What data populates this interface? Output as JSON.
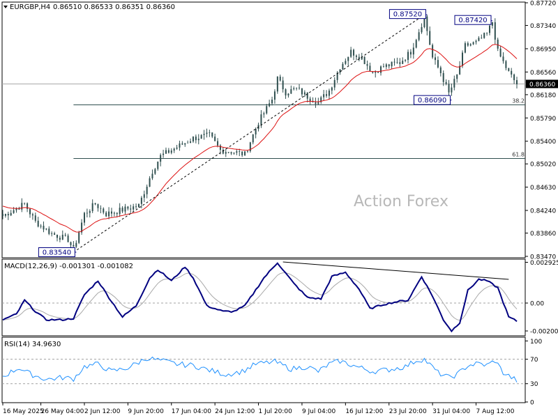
{
  "header": {
    "symbol": "EURGBP,H4",
    "ohlc": "0.86510 0.86533 0.86351 0.86360"
  },
  "watermark": "Action Forex",
  "colors": {
    "candle": "#2f4f4f",
    "ma": "#dd1111",
    "macd": "#000080",
    "signal": "#a9a9a9",
    "trendline": "#000000",
    "fib": "#2f4f4f",
    "level_box": "#000080",
    "grid_dash": "#a0a0a0"
  },
  "price_panel": {
    "ylim": [
      0.8347,
      0.8772
    ],
    "ticks": [
      "0.87720",
      "0.87340",
      "0.86950",
      "0.86560",
      "0.86180",
      "0.85790",
      "0.85400",
      "0.85020",
      "0.84630",
      "0.84240",
      "0.83860",
      "0.83470"
    ],
    "last_price": "0.86360",
    "fib_levels": [
      {
        "label": "38.2",
        "value": 0.8601,
        "x_start_bar": 26
      },
      {
        "label": "61.8",
        "value": 0.8511,
        "x_start_bar": 26
      }
    ],
    "level_labels": [
      {
        "text": "0.87520",
        "value": 0.8752,
        "bar": 155
      },
      {
        "text": "0.87420",
        "value": 0.8742,
        "bar": 179
      },
      {
        "text": "0.86090",
        "value": 0.8609,
        "bar": 164
      },
      {
        "text": "0.83540",
        "value": 0.8354,
        "bar": 26
      }
    ],
    "trendline": {
      "from": [
        26,
        0.8354
      ],
      "to": [
        155,
        0.8752
      ]
    }
  },
  "macd_panel": {
    "label": "MACD(12,26,9) -0.001301 -0.001082",
    "ylim": [
      -0.0023,
      0.0031
    ],
    "ticks": [
      "0.002925",
      "0.00",
      "-0.002002"
    ],
    "tick_values": [
      0.002925,
      0.0,
      -0.002002
    ],
    "trendline": {
      "from": [
        103,
        0.00295
      ],
      "to": [
        186,
        0.0017
      ]
    }
  },
  "rsi_panel": {
    "label": "RSI(14) 34.9630",
    "ylim": [
      0,
      105
    ],
    "ticks": [
      "100",
      "70",
      "30",
      "0"
    ],
    "tick_values": [
      100,
      70,
      30,
      0
    ],
    "levels": [
      70,
      30
    ]
  },
  "x_axis": {
    "labels": [
      "16 May 2025",
      "26 May 04:00",
      "2 Jun 12:00",
      "9 Jun 20:00",
      "17 Jun 04:00",
      "24 Jun 12:00",
      "1 Jul 20:00",
      "9 Jul 04:00",
      "16 Jul 12:00",
      "23 Jul 20:00",
      "31 Jul 04:00",
      "7 Aug 12:00"
    ],
    "label_bars": [
      0,
      14,
      30,
      46,
      62,
      78,
      94,
      110,
      126,
      142,
      158,
      174
    ]
  },
  "chart_data": {
    "type": "candlestick",
    "title": "EURGBP,H4",
    "bar_count": 190,
    "anchors": [
      [
        0,
        0.8415
      ],
      [
        8,
        0.8435
      ],
      [
        12,
        0.8405
      ],
      [
        18,
        0.8385
      ],
      [
        24,
        0.8375
      ],
      [
        26,
        0.8358
      ],
      [
        30,
        0.8418
      ],
      [
        34,
        0.8435
      ],
      [
        38,
        0.8418
      ],
      [
        44,
        0.8425
      ],
      [
        50,
        0.8432
      ],
      [
        55,
        0.849
      ],
      [
        58,
        0.8515
      ],
      [
        62,
        0.8525
      ],
      [
        66,
        0.8535
      ],
      [
        70,
        0.8545
      ],
      [
        76,
        0.855
      ],
      [
        80,
        0.8525
      ],
      [
        85,
        0.8522
      ],
      [
        89,
        0.8518
      ],
      [
        94,
        0.8572
      ],
      [
        99,
        0.861
      ],
      [
        101,
        0.8645
      ],
      [
        104,
        0.8622
      ],
      [
        108,
        0.8628
      ],
      [
        112,
        0.8615
      ],
      [
        116,
        0.8605
      ],
      [
        120,
        0.8625
      ],
      [
        124,
        0.8665
      ],
      [
        128,
        0.869
      ],
      [
        132,
        0.868
      ],
      [
        136,
        0.8655
      ],
      [
        140,
        0.8665
      ],
      [
        146,
        0.8672
      ],
      [
        150,
        0.869
      ],
      [
        155,
        0.8748
      ],
      [
        158,
        0.868
      ],
      [
        161,
        0.8655
      ],
      [
        164,
        0.862
      ],
      [
        167,
        0.865
      ],
      [
        170,
        0.87
      ],
      [
        174,
        0.8705
      ],
      [
        178,
        0.872
      ],
      [
        180,
        0.874
      ],
      [
        182,
        0.869
      ],
      [
        186,
        0.8655
      ],
      [
        189,
        0.8636
      ]
    ],
    "macd_anchors": [
      [
        0,
        -0.0012
      ],
      [
        5,
        -0.0008
      ],
      [
        8,
        0.0002
      ],
      [
        12,
        -0.0006
      ],
      [
        16,
        -0.0012
      ],
      [
        22,
        -0.0012
      ],
      [
        26,
        -0.0011
      ],
      [
        30,
        0.0006
      ],
      [
        35,
        0.0016
      ],
      [
        39,
        0.0004
      ],
      [
        44,
        -0.001
      ],
      [
        49,
        -0.0002
      ],
      [
        54,
        0.0018
      ],
      [
        57,
        0.0024
      ],
      [
        62,
        0.0016
      ],
      [
        67,
        0.0026
      ],
      [
        70,
        0.0018
      ],
      [
        75,
        -0.0002
      ],
      [
        81,
        -0.0006
      ],
      [
        85,
        -0.0006
      ],
      [
        89,
        -0.0002
      ],
      [
        96,
        0.0018
      ],
      [
        101,
        0.0029
      ],
      [
        107,
        0.0014
      ],
      [
        112,
        0.0004
      ],
      [
        117,
        0.0003
      ],
      [
        121,
        0.0019
      ],
      [
        126,
        0.0022
      ],
      [
        131,
        0.001
      ],
      [
        135,
        -0.0004
      ],
      [
        140,
        -0.0001
      ],
      [
        145,
        0.0001
      ],
      [
        149,
        0.0002
      ],
      [
        154,
        0.0019
      ],
      [
        158,
        0.0005
      ],
      [
        162,
        -0.0012
      ],
      [
        165,
        -0.002
      ],
      [
        168,
        -0.0014
      ],
      [
        171,
        0.0009
      ],
      [
        175,
        0.0017
      ],
      [
        178,
        0.0016
      ],
      [
        182,
        0.0011
      ],
      [
        186,
        -0.001
      ],
      [
        189,
        -0.0013
      ]
    ],
    "rsi_anchors": [
      [
        0,
        42
      ],
      [
        6,
        56
      ],
      [
        10,
        46
      ],
      [
        16,
        37
      ],
      [
        22,
        40
      ],
      [
        26,
        38
      ],
      [
        30,
        58
      ],
      [
        35,
        62
      ],
      [
        40,
        50
      ],
      [
        46,
        56
      ],
      [
        53,
        72
      ],
      [
        58,
        68
      ],
      [
        64,
        62
      ],
      [
        70,
        60
      ],
      [
        76,
        52
      ],
      [
        82,
        45
      ],
      [
        88,
        50
      ],
      [
        93,
        62
      ],
      [
        100,
        66
      ],
      [
        106,
        54
      ],
      [
        112,
        58
      ],
      [
        116,
        50
      ],
      [
        120,
        62
      ],
      [
        124,
        67
      ],
      [
        130,
        58
      ],
      [
        136,
        50
      ],
      [
        142,
        53
      ],
      [
        148,
        58
      ],
      [
        152,
        68
      ],
      [
        155,
        70
      ],
      [
        160,
        48
      ],
      [
        164,
        40
      ],
      [
        167,
        45
      ],
      [
        171,
        60
      ],
      [
        175,
        63
      ],
      [
        178,
        60
      ],
      [
        181,
        68
      ],
      [
        184,
        48
      ],
      [
        189,
        35
      ]
    ]
  }
}
